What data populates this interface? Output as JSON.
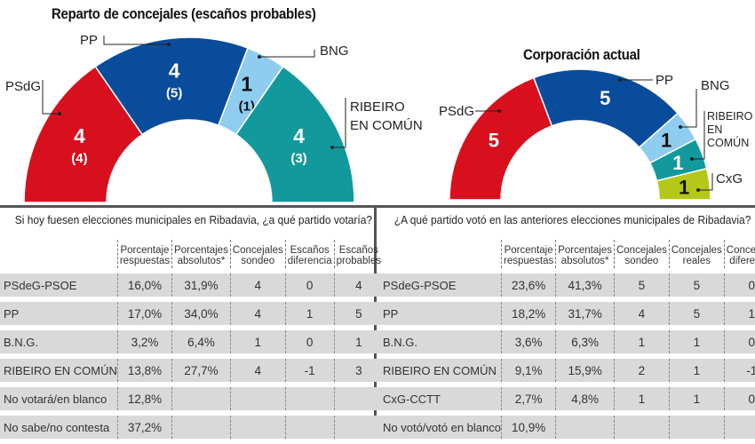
{
  "chart_data": [
    {
      "type": "pie",
      "subtype": "semicircle-parliament",
      "title": "Reparto de concejales (escaños probables)",
      "series": [
        {
          "name": "PSdG",
          "value": 4,
          "previous": "(4)",
          "color": "#d8101e"
        },
        {
          "name": "PP",
          "value": 4,
          "previous": "(5)",
          "color": "#0a4c9c"
        },
        {
          "name": "BNG",
          "value": 1,
          "previous": "(1)",
          "color": "#8ecdf0"
        },
        {
          "name": "RIBEIRO EN COMÚN",
          "value": 4,
          "previous": "(3)",
          "color": "#12999b"
        }
      ]
    },
    {
      "type": "pie",
      "subtype": "semicircle-parliament",
      "title": "Corporación actual",
      "series": [
        {
          "name": "PSdG",
          "value": 5,
          "color": "#d8101e"
        },
        {
          "name": "PP",
          "value": 5,
          "color": "#0a4c9c"
        },
        {
          "name": "BNG",
          "value": 1,
          "color": "#8ecdf0"
        },
        {
          "name": "RIBEIRO EN COMÚN",
          "value": 1,
          "color": "#12999b"
        },
        {
          "name": "CxG",
          "value": 1,
          "color": "#b5c81a"
        }
      ]
    },
    {
      "type": "table",
      "title": "Si hoy fuesen elecciones municipales en Ribadavia, ¿a qué partido votaría?",
      "columns": [
        "",
        "Porcentaje respuestas",
        "Porcentajes absolutos*",
        "Concejales sondeo",
        "Escaños diferencia",
        "Escaños probables"
      ],
      "rows": [
        [
          "PSdeG-PSOE",
          "16,0%",
          "31,9%",
          "4",
          "0",
          "4"
        ],
        [
          "PP",
          "17,0%",
          "34,0%",
          "4",
          "1",
          "5"
        ],
        [
          "B.N.G.",
          "3,2%",
          "6,4%",
          "1",
          "0",
          "1"
        ],
        [
          "RIBEIRO EN COMÚN",
          "13,8%",
          "27,7%",
          "4",
          "-1",
          "3"
        ],
        [
          "No votará/en blanco",
          "12,8%",
          "",
          "",
          "",
          ""
        ],
        [
          "No sabe/no contesta",
          "37,2%",
          "",
          "",
          "",
          ""
        ]
      ]
    },
    {
      "type": "table",
      "title": "¿A qué partido votó en las anteriores elecciones municipales de Ribadavia?",
      "columns": [
        "",
        "Porcentaje respuestas",
        "Porcentajes absolutos*",
        "Concejales sondeo",
        "Concejales reales",
        "Concejales diferencia"
      ],
      "rows": [
        [
          "PSdeG-PSOE",
          "23,6%",
          "41,3%",
          "5",
          "5",
          "0"
        ],
        [
          "PP",
          "18,2%",
          "31,7%",
          "4",
          "5",
          "1"
        ],
        [
          "B.N.G.",
          "3,6%",
          "6,3%",
          "1",
          "1",
          "0"
        ],
        [
          "RIBEIRO EN COMÚN",
          "9,1%",
          "15,9%",
          "2",
          "1",
          "-1"
        ],
        [
          "CxG-CCTT",
          "2,7%",
          "4,8%",
          "1",
          "1",
          "0"
        ],
        [
          "No votó/votó en blanco",
          "10,9%",
          "",
          "",
          "",
          ""
        ]
      ]
    }
  ],
  "labels": {
    "left": {
      "psdg": "PSdG",
      "pp": "PP",
      "bng": "BNG",
      "ribeiro_1": "RIBEIRO",
      "ribeiro_2": "EN COMÚN"
    },
    "right": {
      "psdg": "PSdG",
      "pp": "PP",
      "bng": "BNG",
      "ribeiro_1": "RIBEIRO",
      "ribeiro_2": "EN",
      "ribeiro_3": "COMÚN",
      "cxg": "CxG"
    }
  }
}
